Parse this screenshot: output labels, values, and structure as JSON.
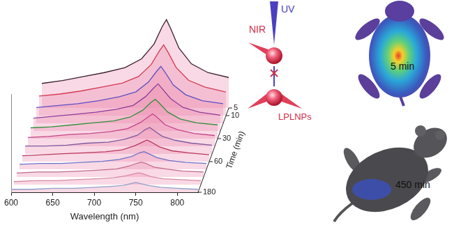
{
  "chart_data": {
    "type": "line",
    "x": [
      600,
      625,
      650,
      675,
      700,
      720,
      735,
      745,
      750,
      755,
      765,
      780,
      800,
      825
    ],
    "xlim": [
      600,
      825
    ],
    "xticks": [
      600,
      650,
      700,
      750,
      800
    ],
    "xlabel": "Wavelength (nm)",
    "ylim": [
      0,
      100
    ],
    "tick_labels": "x",
    "grid": false,
    "z": [
      5,
      10,
      15,
      20,
      30,
      40,
      50,
      60,
      90,
      120,
      150,
      180
    ],
    "zticks": [
      5,
      10,
      30,
      60,
      180
    ],
    "zlabel": "Time (min)",
    "series": [
      {
        "color": "#3a2030",
        "values": [
          25,
          28,
          32,
          36,
          41,
          50,
          65,
          83,
          90,
          81,
          61,
          45,
          36,
          31
        ]
      },
      {
        "color": "#d23a52",
        "values": [
          20,
          22,
          25,
          29,
          33,
          40,
          52,
          66,
          72,
          65,
          49,
          36,
          29,
          24
        ]
      },
      {
        "color": "#5b4fc4",
        "values": [
          16,
          18,
          20,
          23,
          27,
          32,
          42,
          53,
          58,
          52,
          39,
          29,
          23,
          20
        ]
      },
      {
        "color": "#8e3d9c",
        "values": [
          13,
          15,
          17,
          19,
          22,
          26,
          35,
          44,
          48,
          43,
          33,
          24,
          19,
          16
        ]
      },
      {
        "color": "#2f8f3a",
        "values": [
          11,
          12,
          14,
          16,
          18,
          22,
          29,
          37,
          40,
          36,
          27,
          20,
          16,
          14
        ]
      },
      {
        "color": "#c2448a",
        "values": [
          9,
          10,
          12,
          13,
          15,
          18,
          24,
          30,
          33,
          30,
          22,
          17,
          13,
          11
        ]
      },
      {
        "color": "#7d5aa0",
        "values": [
          8,
          8,
          9,
          11,
          12,
          15,
          19,
          25,
          27,
          24,
          18,
          14,
          11,
          9
        ]
      },
      {
        "color": "#b83a5e",
        "values": [
          6,
          7,
          8,
          9,
          10,
          12,
          16,
          20,
          22,
          20,
          15,
          11,
          9,
          7
        ]
      },
      {
        "color": "#6a72c8",
        "values": [
          5,
          6,
          6,
          7,
          8,
          10,
          13,
          17,
          18,
          16,
          12,
          9,
          7,
          6
        ]
      },
      {
        "color": "#c06a8a",
        "values": [
          4,
          5,
          5,
          6,
          7,
          8,
          11,
          14,
          15,
          14,
          10,
          8,
          6,
          5
        ]
      },
      {
        "color": "#d88aa0",
        "values": [
          3,
          4,
          4,
          5,
          6,
          7,
          9,
          11,
          12,
          11,
          8,
          6,
          5,
          4
        ]
      },
      {
        "color": "#8fa0c8",
        "values": [
          3,
          3,
          4,
          4,
          5,
          6,
          7,
          9,
          10,
          9,
          7,
          5,
          4,
          3
        ]
      }
    ]
  },
  "scheme": {
    "excitation": "UV",
    "emission": "NIR",
    "particles": "LPLNPs"
  },
  "mouse_images": [
    {
      "label": "5 min"
    },
    {
      "label": "450 min"
    }
  ]
}
